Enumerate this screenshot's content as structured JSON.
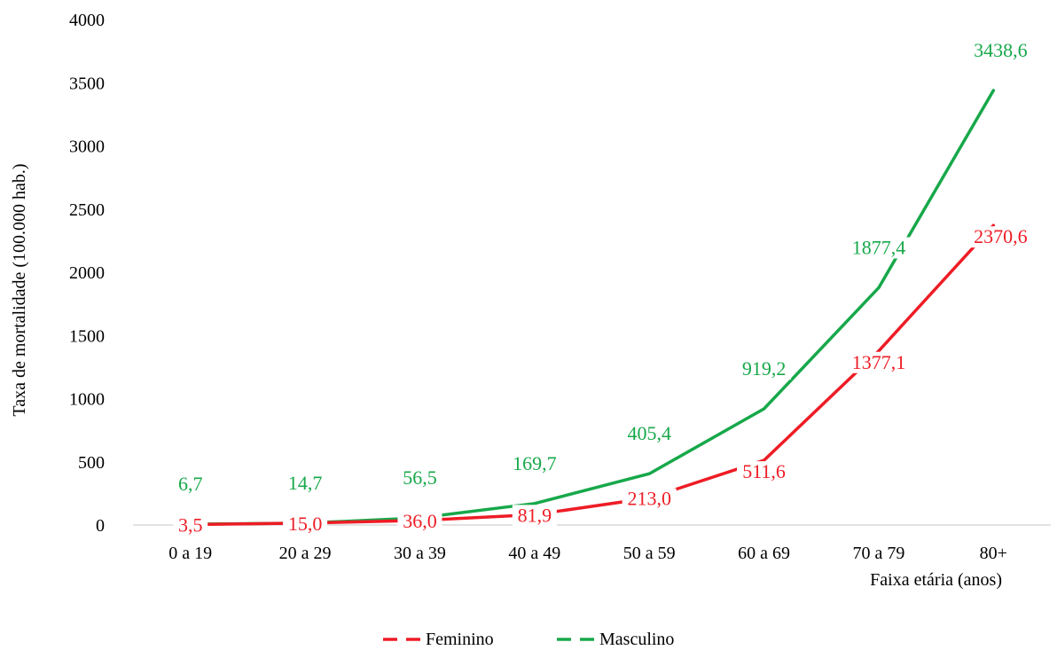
{
  "chart_data": {
    "type": "line",
    "title": "",
    "xlabel": "Faixa etária (anos)",
    "ylabel": "Taxa de mortalidade (100.000 hab.)",
    "ylim": [
      0,
      4000
    ],
    "yticks": [
      0,
      500,
      1000,
      1500,
      2000,
      2500,
      3000,
      3500,
      4000
    ],
    "grid": false,
    "legend": "bottom",
    "categories": [
      "0 a 19",
      "20 a 29",
      "30 a 39",
      "40 a 49",
      "50 a 59",
      "60 a 69",
      "70 a 79",
      "80+"
    ],
    "series": [
      {
        "name": "Feminino",
        "color": "#ee1c25",
        "values": [
          3.5,
          15.0,
          36.0,
          81.9,
          213.0,
          511.6,
          1377.1,
          2370.6
        ],
        "labels": [
          "3,5",
          "15,0",
          "36,0",
          "81,9",
          "213,0",
          "511,6",
          "1377,1",
          "2370,6"
        ]
      },
      {
        "name": "Masculino",
        "color": "#17a84a",
        "values": [
          6.7,
          14.7,
          56.5,
          169.7,
          405.4,
          919.2,
          1877.4,
          3438.6
        ],
        "labels": [
          "6,7",
          "14,7",
          "56,5",
          "169,7",
          "405,4",
          "919,2",
          "1877,4",
          "3438,6"
        ]
      }
    ]
  }
}
